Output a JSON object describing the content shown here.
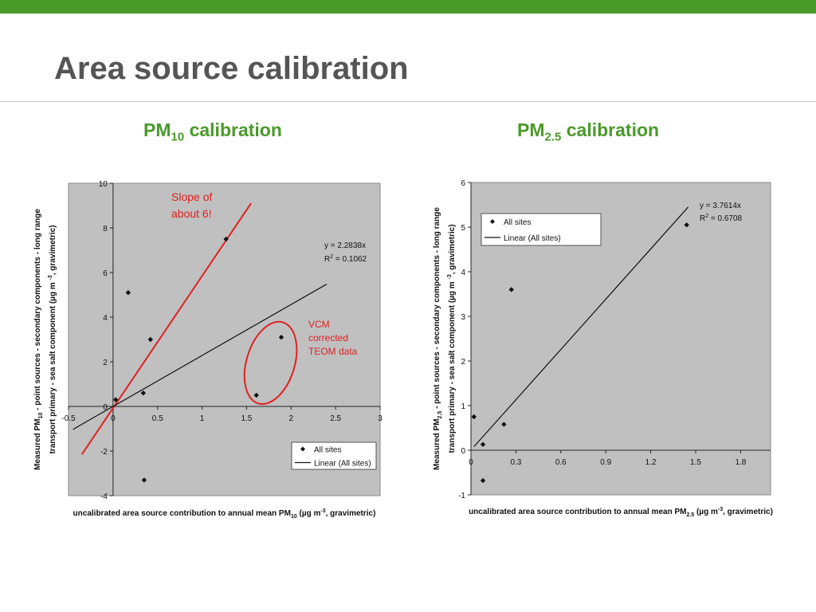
{
  "slide": {
    "title": "Area source calibration",
    "colors": {
      "accent_green": "#4a9a2a",
      "title_gray": "#555555",
      "trend_red": "#e02020",
      "plot_bg": "#c0c0c0"
    }
  },
  "charts": [
    {
      "heading": {
        "main": "PM",
        "sub": "10",
        "rest": " calibration"
      }
    },
    {
      "heading": {
        "main": "PM",
        "sub": "2.5",
        "rest": " calibration"
      }
    }
  ],
  "chart_data": [
    {
      "type": "scatter",
      "title": "PM10 calibration",
      "xlabel": {
        "pre": "uncalibrated area source contribution to annual mean PM",
        "sub": "10",
        "mid": " (µg m",
        "sup": "-3",
        "post": ", gravimetric)"
      },
      "ylabel": {
        "line1_pre": "Measured PM",
        "line1_sub": "10",
        "line1_post": " - point sources - secondary components - long range",
        "line2_pre": "transport primary - sea salt component (µg m ",
        "line2_sup": "-3",
        "line2_post": ", gravimetric)"
      },
      "xlim": [
        -0.5,
        3
      ],
      "ylim": [
        -4,
        10
      ],
      "xticks": [
        -0.5,
        0,
        0.5,
        1,
        1.5,
        2,
        2.5,
        3
      ],
      "xtick_labels": [
        "-0.5",
        "0",
        "0.5",
        "1",
        "1.5",
        "2",
        "2.5",
        "3"
      ],
      "yticks": [
        -4,
        -2,
        0,
        2,
        4,
        6,
        8,
        10
      ],
      "ytick_labels": [
        "-4",
        "-2",
        "0",
        "2",
        "4",
        "6",
        "8",
        "10"
      ],
      "grid": false,
      "legend": {
        "placement": "bottom-right",
        "entries": [
          "All sites",
          "Linear (All sites)"
        ]
      },
      "series": [
        {
          "name": "All sites",
          "kind": "points",
          "x": [
            0.03,
            0.35,
            0.17,
            0.42,
            0.34,
            1.27,
            1.89,
            1.61
          ],
          "y": [
            0.3,
            -3.3,
            5.1,
            3.0,
            0.6,
            7.5,
            3.1,
            0.5
          ]
        },
        {
          "name": "Linear (All sites)",
          "kind": "line",
          "x": [
            -0.45,
            2.4
          ],
          "y": [
            -1.03,
            5.48
          ]
        }
      ],
      "annotations": {
        "equation": "y = 2.2838x",
        "r2_pre": "R",
        "r2_sup": "2",
        "r2_post": " = 0.1062",
        "slope_note_line1": "Slope of",
        "slope_note_line2": "about 6!",
        "vcm_line1": "VCM",
        "vcm_line2": "corrected",
        "vcm_line3": "TEOM data"
      },
      "red_line": {
        "x": [
          -0.35,
          1.55
        ],
        "y": [
          -2.15,
          9.1
        ]
      },
      "vcm_ellipse": {
        "cx": 1.77,
        "cy": 1.95,
        "rx": 0.27,
        "ry": 1.9
      }
    },
    {
      "type": "scatter",
      "title": "PM2.5 calibration",
      "xlabel": {
        "pre": "uncalibrated area source contribution to annual mean PM",
        "sub": "2.5",
        "mid": " (µg m",
        "sup": "-3",
        "post": ", gravimetric)"
      },
      "ylabel": {
        "line1_pre": "Measured PM",
        "line1_sub": "2.5",
        "line1_post": " - point sources - secondary components - long range",
        "line2_pre": "transport primary - sea salt component (µg m ",
        "line2_sup": "-3",
        "line2_post": ", gravimetric)"
      },
      "xlim": [
        0,
        2.0
      ],
      "ylim": [
        -1,
        6
      ],
      "xticks": [
        0,
        0.3,
        0.6,
        0.9,
        1.2,
        1.5,
        1.8
      ],
      "xtick_labels": [
        "0",
        "0.3",
        "0.6",
        "0.9",
        "1.2",
        "1.5",
        "1.8"
      ],
      "yticks": [
        -1,
        0,
        1,
        2,
        3,
        4,
        5,
        6
      ],
      "ytick_labels": [
        "-1",
        "0",
        "1",
        "2",
        "3",
        "4",
        "5",
        "6"
      ],
      "grid": false,
      "legend": {
        "placement": "top-left",
        "entries": [
          "All sites",
          "Linear (All sites)"
        ]
      },
      "series": [
        {
          "name": "All sites",
          "kind": "points",
          "x": [
            0.02,
            0.08,
            0.08,
            0.22,
            0.27,
            1.44
          ],
          "y": [
            0.75,
            0.13,
            -0.68,
            0.58,
            3.6,
            5.05
          ]
        },
        {
          "name": "Linear (All sites)",
          "kind": "line",
          "x": [
            0.02,
            1.45
          ],
          "y": [
            0.08,
            5.45
          ]
        }
      ],
      "annotations": {
        "equation": "y = 3.7614x",
        "r2_pre": "R",
        "r2_sup": "2",
        "r2_post": " = 0.6708"
      }
    }
  ]
}
